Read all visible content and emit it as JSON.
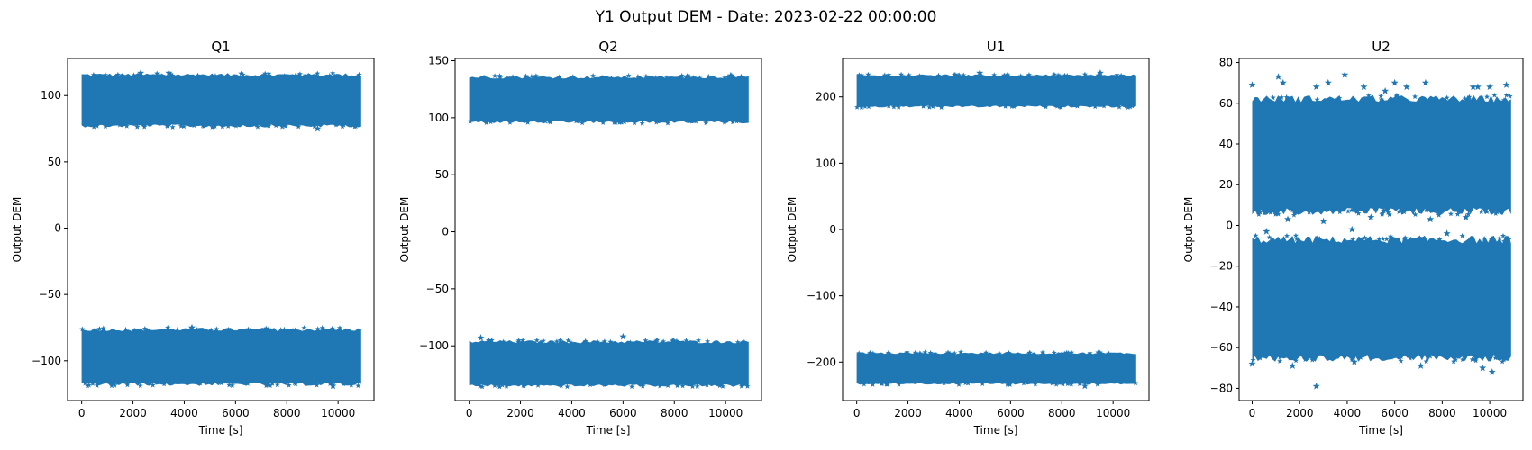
{
  "figure": {
    "suptitle": "Y1 Output DEM - Date: 2023-02-22 00:00:00",
    "color": "#1f77b4"
  },
  "chart_data": [
    {
      "type": "scatter",
      "title": "Q1",
      "xlabel": "Time [s]",
      "ylabel": "Output DEM",
      "marker": "star",
      "xlim": [
        -550,
        11400
      ],
      "ylim": [
        -130,
        128
      ],
      "xticks": [
        0,
        2000,
        4000,
        6000,
        8000,
        10000
      ],
      "xtick_labels": [
        "0",
        "2000",
        "4000",
        "6000",
        "8000",
        "10000"
      ],
      "yticks": [
        100,
        50,
        0,
        -50,
        -100
      ],
      "ytick_labels": [
        "100",
        "50",
        "0",
        "−50",
        "−100"
      ],
      "x_range": [
        0,
        10900
      ],
      "bands": [
        {
          "center": 95,
          "low": 76,
          "high": 117
        },
        {
          "center": -97,
          "low": -119,
          "high": -75
        }
      ],
      "outliers": [
        [
          2300,
          117
        ],
        [
          3400,
          117
        ],
        [
          4300,
          -75
        ],
        [
          9800,
          -119
        ],
        [
          9200,
          75
        ]
      ]
    },
    {
      "type": "scatter",
      "title": "Q2",
      "xlabel": "Time [s]",
      "ylabel": "Output DEM",
      "marker": "star",
      "xlim": [
        -550,
        11400
      ],
      "ylim": [
        -148,
        152
      ],
      "xticks": [
        0,
        2000,
        4000,
        6000,
        8000,
        10000
      ],
      "xtick_labels": [
        "0",
        "2000",
        "4000",
        "6000",
        "8000",
        "10000"
      ],
      "yticks": [
        150,
        100,
        50,
        0,
        -50,
        -100
      ],
      "ytick_labels": [
        "150",
        "100",
        "50",
        "0",
        "−50",
        "−100"
      ],
      "x_range": [
        0,
        10900
      ],
      "bands": [
        {
          "center": 115,
          "low": 95,
          "high": 137
        },
        {
          "center": -118,
          "low": -136,
          "high": -95
        }
      ],
      "outliers": [
        [
          450,
          -93
        ],
        [
          6000,
          -92
        ],
        [
          10200,
          137
        ],
        [
          1700,
          135
        ],
        [
          8500,
          136
        ]
      ]
    },
    {
      "type": "scatter",
      "title": "U1",
      "xlabel": "Time [s]",
      "ylabel": "Output DEM",
      "marker": "star",
      "xlim": [
        -550,
        11400
      ],
      "ylim": [
        -258,
        258
      ],
      "xticks": [
        0,
        2000,
        4000,
        6000,
        8000,
        10000
      ],
      "xtick_labels": [
        "0",
        "2000",
        "4000",
        "6000",
        "8000",
        "10000"
      ],
      "yticks": [
        200,
        100,
        0,
        -100,
        -200
      ],
      "ytick_labels": [
        "200",
        "100",
        "0",
        "−100",
        "−200"
      ],
      "x_range": [
        0,
        10900
      ],
      "bands": [
        {
          "center": 208,
          "low": 184,
          "high": 234
        },
        {
          "center": -210,
          "low": -234,
          "high": -185
        }
      ],
      "outliers": [
        [
          9500,
          236
        ],
        [
          4800,
          236
        ],
        [
          8900,
          -236
        ]
      ]
    },
    {
      "type": "scatter",
      "title": "U2",
      "xlabel": "Time [s]",
      "ylabel": "Output DEM",
      "marker": "star",
      "xlim": [
        -550,
        11400
      ],
      "ylim": [
        -86,
        82
      ],
      "xticks": [
        0,
        2000,
        4000,
        6000,
        8000,
        10000
      ],
      "xtick_labels": [
        "0",
        "2000",
        "4000",
        "6000",
        "8000",
        "10000"
      ],
      "yticks": [
        80,
        60,
        40,
        20,
        0,
        -20,
        -40,
        -60,
        -80
      ],
      "ytick_labels": [
        "80",
        "60",
        "40",
        "20",
        "0",
        "−20",
        "−40",
        "−60",
        "−80"
      ],
      "x_range": [
        0,
        10900
      ],
      "bands": [
        {
          "center": 35,
          "low": 5,
          "high": 64
        },
        {
          "center": -37,
          "low": -67,
          "high": -5
        }
      ],
      "outliers": [
        [
          0,
          69
        ],
        [
          1100,
          73
        ],
        [
          1300,
          70
        ],
        [
          2700,
          68
        ],
        [
          3200,
          70
        ],
        [
          3900,
          74
        ],
        [
          4700,
          68
        ],
        [
          5600,
          66
        ],
        [
          6000,
          70
        ],
        [
          6500,
          68
        ],
        [
          7300,
          70
        ],
        [
          9300,
          68
        ],
        [
          9500,
          68
        ],
        [
          10000,
          68
        ],
        [
          10700,
          69
        ],
        [
          2700,
          -79
        ],
        [
          9700,
          -70
        ],
        [
          10100,
          -72
        ],
        [
          1700,
          -69
        ],
        [
          7100,
          -69
        ],
        [
          0,
          -68
        ],
        [
          4300,
          -67
        ],
        [
          1500,
          3
        ],
        [
          3000,
          2
        ],
        [
          5000,
          4
        ],
        [
          7500,
          3
        ],
        [
          9000,
          4
        ],
        [
          600,
          -3
        ],
        [
          4200,
          -2
        ],
        [
          8200,
          -4
        ]
      ]
    }
  ]
}
